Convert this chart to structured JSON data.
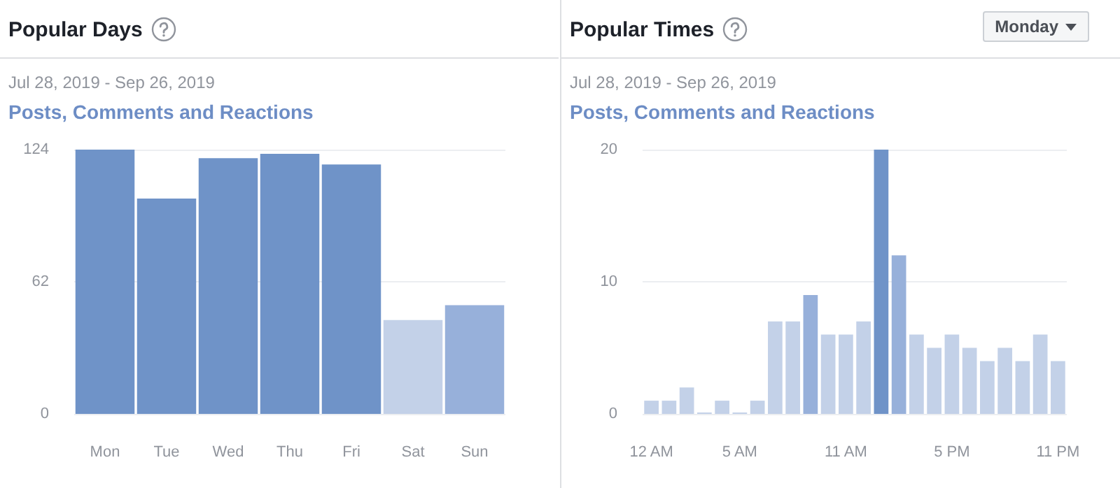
{
  "chart_data": [
    {
      "type": "bar",
      "title": "Popular Days",
      "subtitle": "Jul 28, 2019 - Sep 26, 2019",
      "ylabel": "Posts, Comments and Reactions",
      "categories": [
        "Mon",
        "Tue",
        "Wed",
        "Thu",
        "Fri",
        "Sat",
        "Sun"
      ],
      "values": [
        124,
        101,
        120,
        122,
        117,
        44,
        51
      ],
      "colors": [
        "#6f93c8",
        "#6f93c8",
        "#6f93c8",
        "#6f93c8",
        "#6f93c8",
        "#c3d1e8",
        "#97b0da"
      ],
      "ylim": [
        0,
        124
      ],
      "yticks": [
        0,
        62,
        124
      ],
      "grid": "y"
    },
    {
      "type": "bar",
      "title": "Popular Times",
      "subtitle": "Jul 28, 2019 - Sep 26, 2019",
      "ylabel": "Posts, Comments and Reactions",
      "annotations": [
        "Monday"
      ],
      "categories": [
        "12 AM",
        null,
        null,
        null,
        null,
        "5 AM",
        null,
        null,
        null,
        null,
        null,
        "11 AM",
        null,
        null,
        null,
        null,
        null,
        "5 PM",
        null,
        null,
        null,
        null,
        null,
        "11 PM"
      ],
      "values": [
        1,
        1,
        2,
        0,
        1,
        0,
        1,
        7,
        7,
        9,
        6,
        6,
        7,
        20,
        12,
        6,
        5,
        6,
        5,
        4,
        5,
        4,
        6,
        4
      ],
      "colors": [
        "#c3d1e8",
        "#c3d1e8",
        "#c3d1e8",
        "#c3d1e8",
        "#c3d1e8",
        "#c3d1e8",
        "#c3d1e8",
        "#c3d1e8",
        "#c3d1e8",
        "#97b0da",
        "#c3d1e8",
        "#c3d1e8",
        "#c3d1e8",
        "#6f93c8",
        "#97b0da",
        "#c3d1e8",
        "#c3d1e8",
        "#c3d1e8",
        "#c3d1e8",
        "#c3d1e8",
        "#c3d1e8",
        "#c3d1e8",
        "#c3d1e8",
        "#c3d1e8"
      ],
      "ylim": [
        0,
        20
      ],
      "yticks": [
        0,
        10,
        20
      ],
      "grid": "y"
    }
  ]
}
